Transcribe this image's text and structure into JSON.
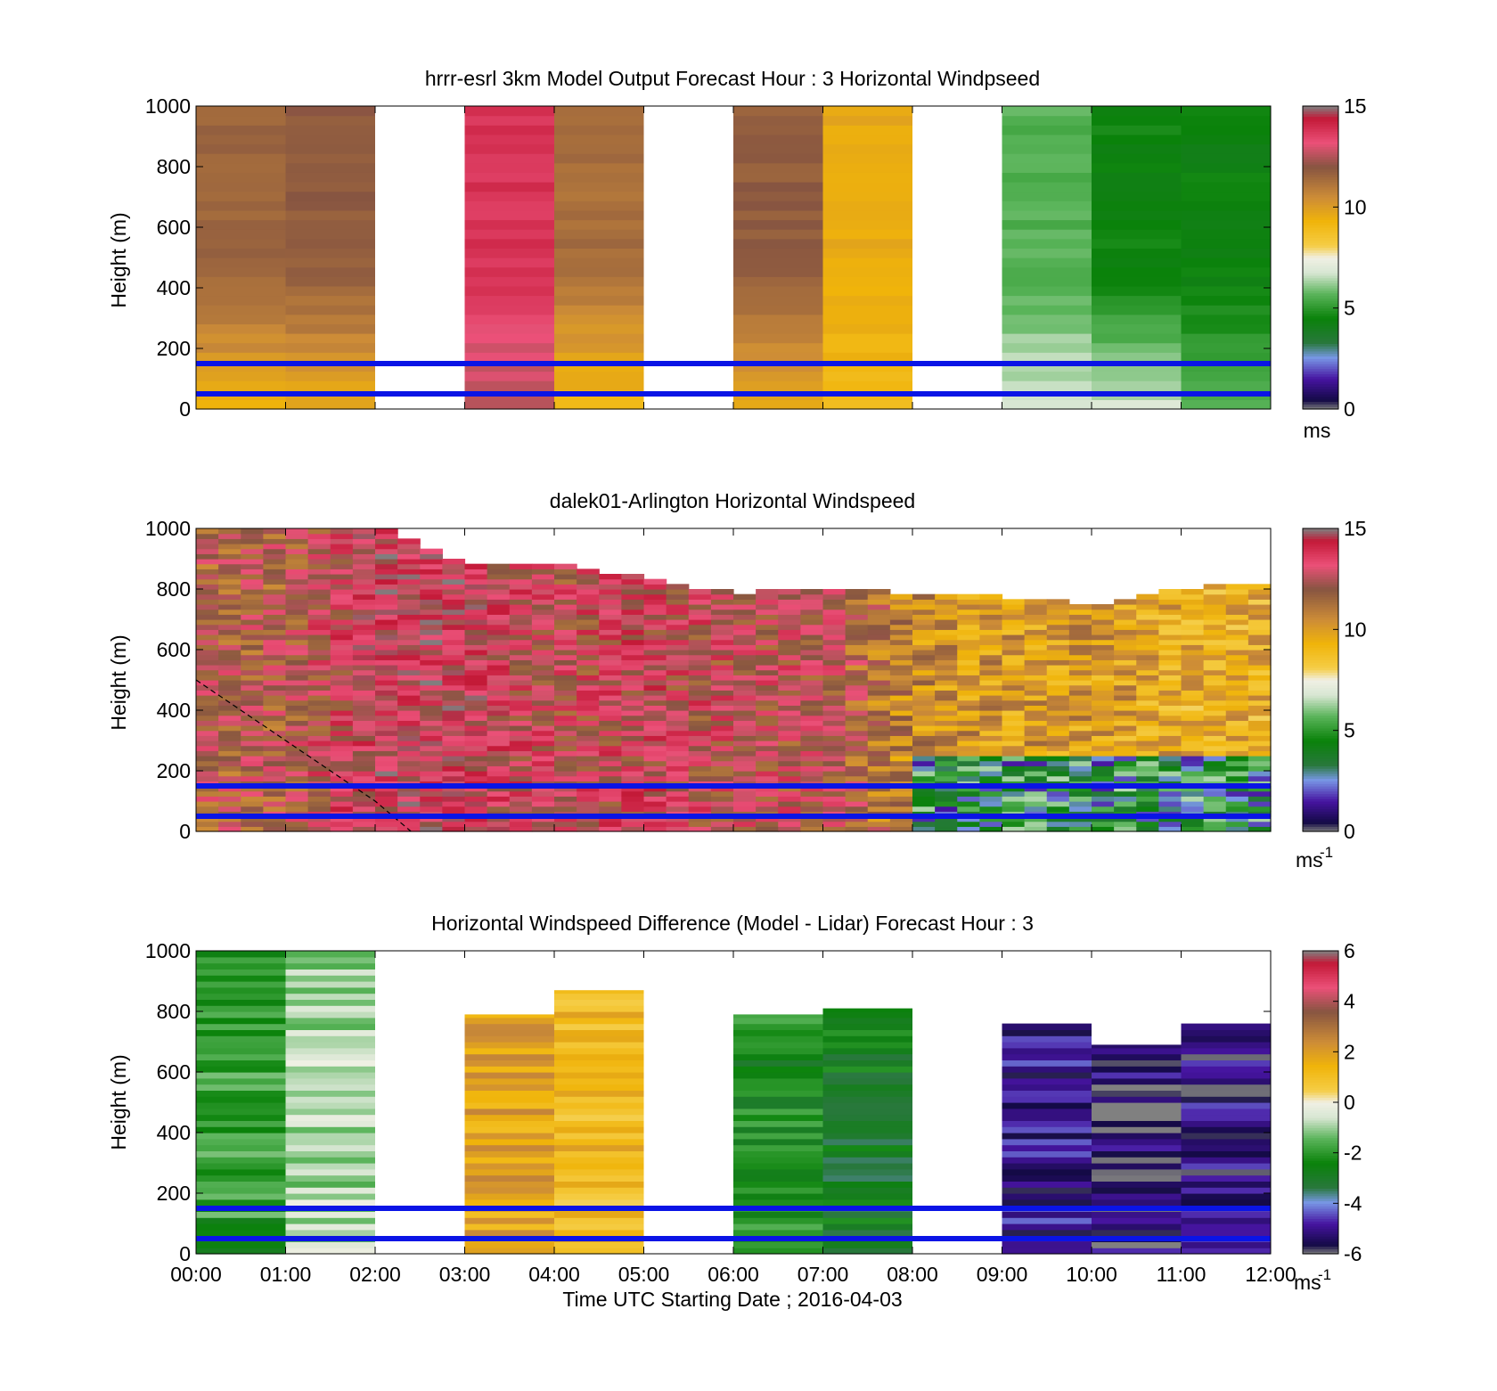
{
  "x_axis": {
    "ticks": [
      "00:00",
      "01:00",
      "02:00",
      "03:00",
      "04:00",
      "05:00",
      "06:00",
      "07:00",
      "08:00",
      "09:00",
      "10:00",
      "11:00",
      "12:00"
    ],
    "label": "Time UTC  Starting Date ; 2016-04-03"
  },
  "chart_data": [
    {
      "type": "heatmap",
      "title": "hrrr-esrl 3km Model Output   Forecast Hour : 3 Horizontal Windpseed",
      "ylabel": "Height (m)",
      "xlim": [
        0,
        12
      ],
      "ylim": [
        0,
        1000
      ],
      "yticks": [
        0,
        200,
        400,
        600,
        800,
        1000
      ],
      "colorbar": {
        "min": 0,
        "max": 15,
        "ticks": [
          0,
          5,
          10,
          15
        ],
        "unit": "ms"
      },
      "reference_lines_m": [
        50,
        150
      ],
      "reference_line_color": "#0a14e6",
      "columns": [
        {
          "hour": 0,
          "value_at_top": 11.5,
          "value_low": 9.5
        },
        {
          "hour": 1,
          "value_at_top": 11.8,
          "value_low": 9.5
        },
        {
          "hour": 2,
          "value_at_top": null,
          "value_low": null
        },
        {
          "hour": 3,
          "value_at_top": 13.8,
          "value_low": 12.5
        },
        {
          "hour": 4,
          "value_at_top": 11.3,
          "value_low": 9.0
        },
        {
          "hour": 5,
          "value_at_top": null,
          "value_low": null
        },
        {
          "hour": 6,
          "value_at_top": 11.8,
          "value_low": 9.5
        },
        {
          "hour": 7,
          "value_at_top": 9.6,
          "value_low": 9.0
        },
        {
          "hour": 8,
          "value_at_top": null,
          "value_low": null
        },
        {
          "hour": 9,
          "value_at_top": 5.6,
          "value_low": 6.8
        },
        {
          "hour": 10,
          "value_at_top": 4.5,
          "value_low": 6.8
        },
        {
          "hour": 11,
          "value_at_top": 4.4,
          "value_low": 5.5
        }
      ]
    },
    {
      "type": "heatmap",
      "title": "dalek01-Arlington  Horizontal Windspeed",
      "ylabel": "Height (m)",
      "xlim": [
        0,
        12
      ],
      "ylim": [
        0,
        1000
      ],
      "yticks": [
        0,
        200,
        400,
        600,
        800,
        1000
      ],
      "colorbar": {
        "min": 0,
        "max": 15,
        "ticks": [
          0,
          5,
          10,
          15
        ],
        "unit": "ms",
        "unit_exp": "-1"
      },
      "reference_lines_m": [
        50,
        150
      ],
      "reference_line_color": "#0a14e6",
      "dashed_curve": [
        [
          0,
          500
        ],
        [
          0.5,
          400
        ],
        [
          1.0,
          300
        ],
        [
          1.5,
          200
        ],
        [
          2.0,
          100
        ],
        [
          2.4,
          0
        ]
      ],
      "samples": [
        {
          "hour": 0.0,
          "top_m": 1000,
          "value_mid": 12.0
        },
        {
          "hour": 1.0,
          "top_m": 1000,
          "value_mid": 12.0
        },
        {
          "hour": 2.0,
          "top_m": 1000,
          "value_mid": 13.5
        },
        {
          "hour": 3.0,
          "top_m": 880,
          "value_mid": 13.5
        },
        {
          "hour": 4.0,
          "top_m": 880,
          "value_mid": 12.5
        },
        {
          "hour": 5.0,
          "top_m": 830,
          "value_mid": 13.0
        },
        {
          "hour": 6.0,
          "top_m": 780,
          "value_mid": 12.5
        },
        {
          "hour": 7.0,
          "top_m": 790,
          "value_mid": 12.5
        },
        {
          "hour": 8.0,
          "top_m": 780,
          "value_mid": 10.5
        },
        {
          "hour": 9.0,
          "top_m": 770,
          "value_mid": 10.0
        },
        {
          "hour": 10.0,
          "top_m": 740,
          "value_mid": 10.0
        },
        {
          "hour": 11.0,
          "top_m": 790,
          "value_mid": 9.5
        },
        {
          "hour": 12.0,
          "top_m": 820,
          "value_mid": 9.5
        }
      ]
    },
    {
      "type": "heatmap",
      "title": "Horizontal Windspeed Difference (Model - Lidar) Forecast Hour : 3",
      "ylabel": "Height (m)",
      "xlabel": "Time UTC  Starting Date ; 2016-04-03",
      "xlim": [
        0,
        12
      ],
      "ylim": [
        0,
        1000
      ],
      "yticks": [
        0,
        200,
        400,
        600,
        800,
        1000
      ],
      "colorbar": {
        "min": -6,
        "max": 6,
        "ticks": [
          -6,
          -4,
          -2,
          0,
          2,
          4,
          6
        ],
        "unit": "ms",
        "unit_exp": "-1"
      },
      "reference_lines_m": [
        50,
        150
      ],
      "reference_line_color": "#0a14e6",
      "columns": [
        {
          "hour": 0,
          "top_m": 1000,
          "value_mid": -2.0
        },
        {
          "hour": 1,
          "top_m": 1000,
          "value_mid": -0.8
        },
        {
          "hour": 2,
          "top_m": null,
          "value_mid": null
        },
        {
          "hour": 3,
          "top_m": 790,
          "value_mid": 1.8
        },
        {
          "hour": 4,
          "top_m": 870,
          "value_mid": 1.2
        },
        {
          "hour": 5,
          "top_m": null,
          "value_mid": null
        },
        {
          "hour": 6,
          "top_m": 790,
          "value_mid": -2.3
        },
        {
          "hour": 7,
          "top_m": 810,
          "value_mid": -2.8
        },
        {
          "hour": 8,
          "top_m": null,
          "value_mid": null
        },
        {
          "hour": 9,
          "top_m": 760,
          "value_mid": -5.0
        },
        {
          "hour": 10,
          "top_m": 690,
          "value_mid": -5.4
        },
        {
          "hour": 11,
          "top_m": 760,
          "value_mid": -5.2
        }
      ]
    }
  ]
}
